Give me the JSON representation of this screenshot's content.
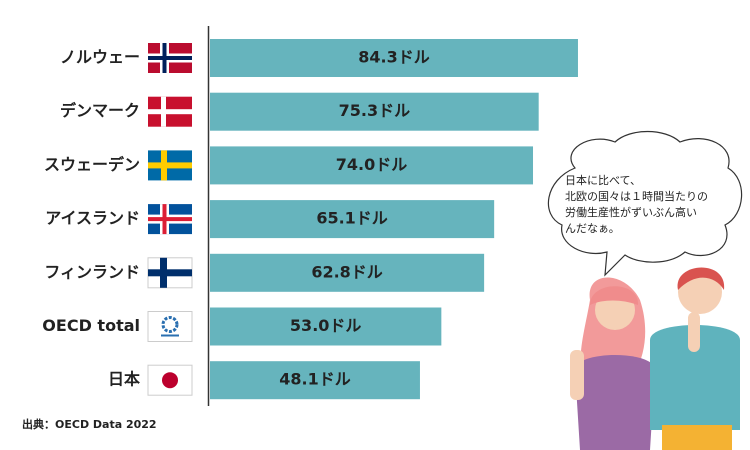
{
  "chart_data": {
    "type": "bar",
    "categories": [
      "ノルウェー",
      "デンマーク",
      "スウェーデン",
      "アイスランド",
      "フィンランド",
      "OECD total",
      "日本"
    ],
    "values": [
      84.3,
      75.3,
      74.0,
      65.1,
      62.8,
      53.0,
      48.1
    ],
    "value_labels": [
      "84.3ドル",
      "75.3ドル",
      "74.0ドル",
      "65.1ドル",
      "62.8ドル",
      "53.0ドル",
      "48.1ドル"
    ],
    "color": "#66b4bd",
    "source": "出典：OECD Data 2022"
  },
  "speech_bubble": [
    "日本に比べて、",
    "北欧の国々は１時間当たりの",
    "労働生産性がずいぶん高い",
    "んだなぁ。"
  ]
}
